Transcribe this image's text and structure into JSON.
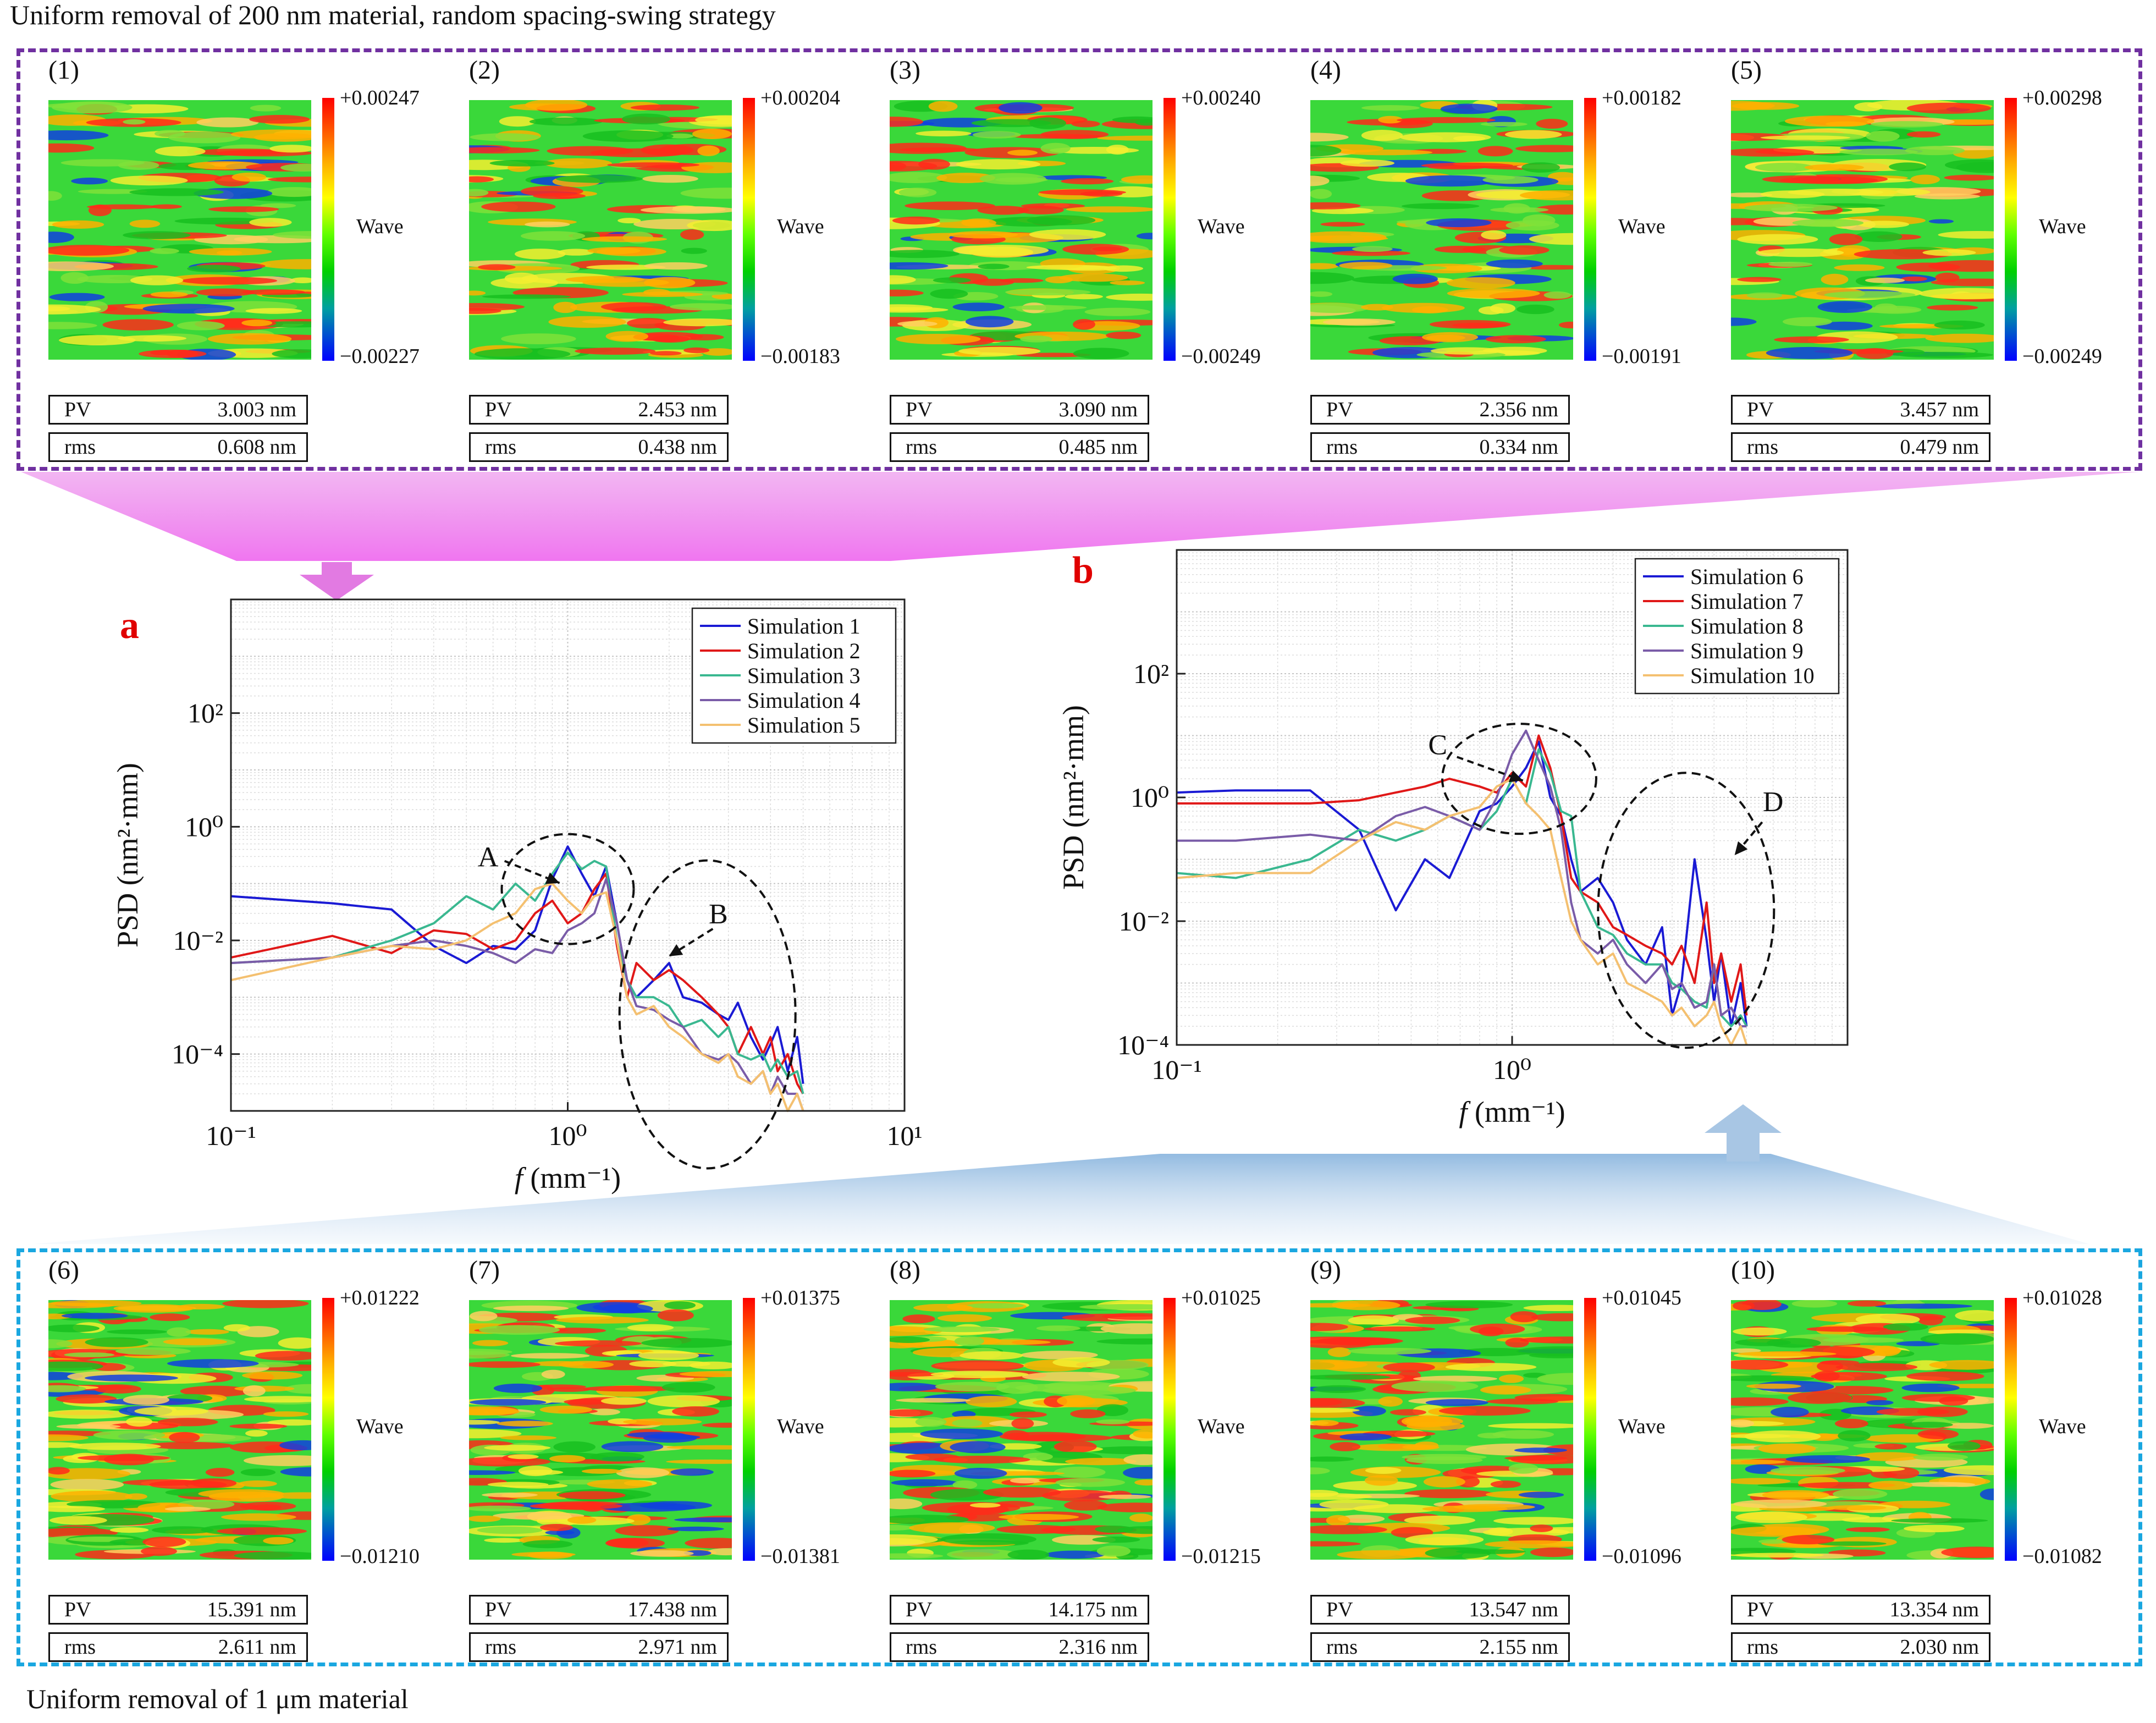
{
  "top_caption": "Uniform removal of 200 nm material, random spacing-swing strategy",
  "bottom_caption": "Uniform removal of 1 μm material",
  "colors": {
    "top_box": "#7030a0",
    "bottom_box": "#1aa7e0",
    "panel_letter": "#e00000",
    "top_arrow": "#e27ae2",
    "bottom_arrow": "#a8c6e4"
  },
  "maps_top": [
    {
      "label": "(1)",
      "cb_max": "+0.00247",
      "cb_min": "−0.00227",
      "cb_title": "Wave",
      "pv_label": "PV",
      "pv": "3.003 nm",
      "rms_label": "rms",
      "rms": "0.608 nm"
    },
    {
      "label": "(2)",
      "cb_max": "+0.00204",
      "cb_min": "−0.00183",
      "cb_title": "Wave",
      "pv_label": "PV",
      "pv": "2.453 nm",
      "rms_label": "rms",
      "rms": "0.438 nm"
    },
    {
      "label": "(3)",
      "cb_max": "+0.00240",
      "cb_min": "−0.00249",
      "cb_title": "Wave",
      "pv_label": "PV",
      "pv": "3.090 nm",
      "rms_label": "rms",
      "rms": "0.485 nm"
    },
    {
      "label": "(4)",
      "cb_max": "+0.00182",
      "cb_min": "−0.00191",
      "cb_title": "Wave",
      "pv_label": "PV",
      "pv": "2.356 nm",
      "rms_label": "rms",
      "rms": "0.334 nm"
    },
    {
      "label": "(5)",
      "cb_max": "+0.00298",
      "cb_min": "−0.00249",
      "cb_title": "Wave",
      "pv_label": "PV",
      "pv": "3.457 nm",
      "rms_label": "rms",
      "rms": "0.479 nm"
    }
  ],
  "maps_bottom": [
    {
      "label": "(6)",
      "cb_max": "+0.01222",
      "cb_min": "−0.01210",
      "cb_title": "Wave",
      "pv_label": "PV",
      "pv": "15.391 nm",
      "rms_label": "rms",
      "rms": "2.611 nm"
    },
    {
      "label": "(7)",
      "cb_max": "+0.01375",
      "cb_min": "−0.01381",
      "cb_title": "Wave",
      "pv_label": "PV",
      "pv": "17.438 nm",
      "rms_label": "rms",
      "rms": "2.971 nm"
    },
    {
      "label": "(8)",
      "cb_max": "+0.01025",
      "cb_min": "−0.01215",
      "cb_title": "Wave",
      "pv_label": "PV",
      "pv": "14.175 nm",
      "rms_label": "rms",
      "rms": "2.316 nm"
    },
    {
      "label": "(9)",
      "cb_max": "+0.01045",
      "cb_min": "−0.01096",
      "cb_title": "Wave",
      "pv_label": "PV",
      "pv": "13.547 nm",
      "rms_label": "rms",
      "rms": "2.155 nm"
    },
    {
      "label": "(10)",
      "cb_max": "+0.01028",
      "cb_min": "−0.01082",
      "cb_title": "Wave",
      "pv_label": "PV",
      "pv": "13.354 nm",
      "rms_label": "rms",
      "rms": "2.030 nm"
    }
  ],
  "chart_data": [
    {
      "panel": "a",
      "type": "line",
      "xscale": "log",
      "yscale": "log",
      "xlim": [
        0.1,
        10
      ],
      "ylim": [
        1e-05,
        10000
      ],
      "xticks": [
        0.1,
        1,
        10
      ],
      "xtick_labels": [
        "10⁻¹",
        "10⁰",
        "10¹"
      ],
      "yticks": [
        0.0001,
        0.01,
        1,
        100
      ],
      "ytick_labels": [
        "10⁻⁴",
        "10⁻²",
        "10⁰",
        "10²"
      ],
      "xlabel_italic": "f",
      "xlabel_rest": " (mm⁻¹)",
      "ylabel": "PSD (nm²·mm)",
      "legend": "top-right",
      "series": [
        {
          "name": "Simulation 1",
          "color": "#1a1ad4",
          "x": [
            0.1,
            0.2,
            0.3,
            0.4,
            0.5,
            0.6,
            0.7,
            0.8,
            0.9,
            1.0,
            1.1,
            1.2,
            1.3,
            1.4,
            1.5,
            1.6,
            1.8,
            2.0,
            2.2,
            2.5,
            2.8,
            3.0,
            3.2,
            3.5,
            3.8,
            4.0,
            4.2,
            4.5,
            4.8,
            5.0
          ],
          "y": [
            0.06,
            0.045,
            0.035,
            0.008,
            0.004,
            0.008,
            0.007,
            0.015,
            0.12,
            0.45,
            0.15,
            0.06,
            0.2,
            0.02,
            0.002,
            0.001,
            0.002,
            0.004,
            0.001,
            0.0008,
            0.0005,
            0.0004,
            0.0008,
            0.0002,
            8e-05,
            0.00015,
            0.0003,
            5e-05,
            0.0002,
            3e-05
          ]
        },
        {
          "name": "Simulation 2",
          "color": "#e01818",
          "x": [
            0.1,
            0.2,
            0.3,
            0.4,
            0.5,
            0.6,
            0.7,
            0.8,
            0.9,
            1.0,
            1.1,
            1.2,
            1.3,
            1.4,
            1.5,
            1.6,
            1.8,
            2.0,
            2.2,
            2.5,
            2.8,
            3.0,
            3.2,
            3.5,
            3.8,
            4.0,
            4.2,
            4.5,
            4.8,
            5.0
          ],
          "y": [
            0.005,
            0.012,
            0.006,
            0.015,
            0.013,
            0.007,
            0.01,
            0.03,
            0.05,
            0.02,
            0.03,
            0.08,
            0.15,
            0.008,
            0.001,
            0.004,
            0.002,
            0.003,
            0.002,
            0.001,
            0.0005,
            0.0003,
            0.0001,
            0.0003,
            0.0001,
            0.0002,
            5e-05,
            0.0001,
            3e-05,
            2e-05
          ]
        },
        {
          "name": "Simulation 3",
          "color": "#3ab890",
          "x": [
            0.1,
            0.2,
            0.3,
            0.4,
            0.5,
            0.6,
            0.7,
            0.8,
            0.9,
            1.0,
            1.1,
            1.2,
            1.3,
            1.4,
            1.5,
            1.6,
            1.8,
            2.0,
            2.2,
            2.5,
            2.8,
            3.0,
            3.2,
            3.5,
            3.8,
            4.0,
            4.2,
            4.5,
            4.8,
            5.0
          ],
          "y": [
            0.004,
            0.005,
            0.01,
            0.02,
            0.06,
            0.035,
            0.1,
            0.05,
            0.15,
            0.35,
            0.18,
            0.25,
            0.2,
            0.01,
            0.002,
            0.001,
            0.001,
            0.0007,
            0.0003,
            0.0004,
            0.0002,
            0.0003,
            0.0001,
            8e-05,
            0.0001,
            5e-05,
            8e-05,
            4e-05,
            5e-05,
            2e-05
          ]
        },
        {
          "name": "Simulation 4",
          "color": "#7a5ca8",
          "x": [
            0.1,
            0.2,
            0.3,
            0.4,
            0.5,
            0.6,
            0.7,
            0.8,
            0.9,
            1.0,
            1.1,
            1.2,
            1.3,
            1.4,
            1.5,
            1.6,
            1.8,
            2.0,
            2.2,
            2.5,
            2.8,
            3.0,
            3.2,
            3.5,
            3.8,
            4.0,
            4.2,
            4.5,
            4.8,
            5.0
          ],
          "y": [
            0.004,
            0.005,
            0.008,
            0.01,
            0.008,
            0.006,
            0.004,
            0.007,
            0.006,
            0.015,
            0.02,
            0.03,
            0.12,
            0.02,
            0.002,
            0.0007,
            0.0006,
            0.0004,
            0.0003,
            0.0001,
            8e-05,
            0.0001,
            7e-05,
            3e-05,
            5e-05,
            2e-05,
            4e-05,
            2e-05,
            2e-05,
            1e-05
          ]
        },
        {
          "name": "Simulation 5",
          "color": "#f4c070",
          "x": [
            0.1,
            0.2,
            0.3,
            0.4,
            0.5,
            0.6,
            0.7,
            0.8,
            0.9,
            1.0,
            1.1,
            1.2,
            1.3,
            1.4,
            1.5,
            1.6,
            1.8,
            2.0,
            2.2,
            2.5,
            2.8,
            3.0,
            3.2,
            3.5,
            3.8,
            4.0,
            4.2,
            4.5,
            4.8,
            5.0
          ],
          "y": [
            0.002,
            0.005,
            0.008,
            0.007,
            0.01,
            0.02,
            0.03,
            0.08,
            0.1,
            0.05,
            0.03,
            0.06,
            0.07,
            0.01,
            0.001,
            0.0005,
            0.0007,
            0.0003,
            0.0002,
            0.0001,
            7e-05,
            0.0001,
            4e-05,
            3e-05,
            5e-05,
            2e-05,
            3e-05,
            1e-05,
            2e-05,
            1e-05
          ]
        }
      ],
      "annotations": [
        {
          "text": "A",
          "x": 0.58,
          "y": 0.2
        },
        {
          "text": "B",
          "x": 2.8,
          "y": 0.02
        }
      ]
    },
    {
      "panel": "b",
      "type": "line",
      "xscale": "log",
      "yscale": "log",
      "xlim": [
        0.1,
        10
      ],
      "ylim": [
        0.0001,
        10000
      ],
      "xticks": [
        0.1,
        1
      ],
      "xtick_labels": [
        "10⁻¹",
        "10⁰"
      ],
      "yticks": [
        0.0001,
        0.01,
        1,
        100
      ],
      "ytick_labels": [
        "10⁻⁴",
        "10⁻²",
        "10⁰",
        "10²"
      ],
      "xlabel_italic": "f",
      "xlabel_rest": " (mm⁻¹)",
      "ylabel": "PSD (nm²·mm)",
      "legend": "top-right",
      "series": [
        {
          "name": "Simulation 6",
          "color": "#1a1ad4",
          "x": [
            0.1,
            0.15,
            0.25,
            0.35,
            0.45,
            0.55,
            0.65,
            0.8,
            0.9,
            1.0,
            1.1,
            1.2,
            1.3,
            1.4,
            1.5,
            1.6,
            1.8,
            2.0,
            2.2,
            2.5,
            2.8,
            3.0,
            3.2,
            3.5,
            3.8,
            4.0,
            4.2,
            4.5,
            4.8,
            5.0
          ],
          "y": [
            1.2,
            1.3,
            1.3,
            0.3,
            0.015,
            0.1,
            0.05,
            0.6,
            0.8,
            1.5,
            3.0,
            8.0,
            1.0,
            0.5,
            0.1,
            0.03,
            0.05,
            0.02,
            0.005,
            0.002,
            0.008,
            0.0003,
            0.001,
            0.1,
            0.005,
            0.0005,
            0.003,
            0.0002,
            0.001,
            0.0002
          ]
        },
        {
          "name": "Simulation 7",
          "color": "#e01818",
          "x": [
            0.1,
            0.15,
            0.25,
            0.35,
            0.45,
            0.55,
            0.65,
            0.8,
            0.9,
            1.0,
            1.1,
            1.2,
            1.3,
            1.4,
            1.5,
            1.6,
            1.8,
            2.0,
            2.2,
            2.5,
            2.8,
            3.0,
            3.2,
            3.5,
            3.8,
            4.0,
            4.2,
            4.5,
            4.8,
            5.0
          ],
          "y": [
            0.8,
            0.8,
            0.8,
            0.9,
            1.2,
            1.5,
            2.0,
            1.5,
            1.2,
            2.5,
            1.5,
            10.0,
            3.0,
            0.5,
            0.05,
            0.03,
            0.02,
            0.008,
            0.006,
            0.004,
            0.003,
            0.002,
            0.004,
            0.001,
            0.02,
            0.001,
            0.003,
            0.0005,
            0.002,
            0.0003
          ]
        },
        {
          "name": "Simulation 8",
          "color": "#3ab890",
          "x": [
            0.1,
            0.15,
            0.25,
            0.35,
            0.45,
            0.55,
            0.65,
            0.8,
            0.9,
            1.0,
            1.1,
            1.2,
            1.3,
            1.4,
            1.5,
            1.6,
            1.8,
            2.0,
            2.2,
            2.5,
            2.8,
            3.0,
            3.2,
            3.5,
            3.8,
            4.0,
            4.2,
            4.5,
            4.8,
            5.0
          ],
          "y": [
            0.06,
            0.05,
            0.1,
            0.3,
            0.2,
            0.3,
            0.5,
            0.3,
            0.6,
            2.0,
            0.8,
            6.0,
            2.5,
            0.6,
            0.5,
            0.03,
            0.008,
            0.006,
            0.003,
            0.002,
            0.002,
            0.001,
            0.0008,
            0.0005,
            0.0004,
            0.002,
            0.0003,
            0.0002,
            0.0003,
            0.0002
          ]
        },
        {
          "name": "Simulation 9",
          "color": "#7a5ca8",
          "x": [
            0.1,
            0.15,
            0.25,
            0.35,
            0.45,
            0.55,
            0.65,
            0.8,
            0.9,
            1.0,
            1.1,
            1.2,
            1.3,
            1.4,
            1.5,
            1.6,
            1.8,
            2.0,
            2.2,
            2.5,
            2.8,
            3.0,
            3.2,
            3.5,
            3.8,
            4.0,
            4.2,
            4.5,
            4.8,
            5.0
          ],
          "y": [
            0.2,
            0.2,
            0.25,
            0.2,
            0.5,
            0.7,
            0.5,
            0.3,
            1.0,
            5.0,
            12.0,
            4.0,
            1.5,
            0.3,
            0.02,
            0.005,
            0.003,
            0.005,
            0.002,
            0.001,
            0.002,
            0.0008,
            0.001,
            0.0004,
            0.0005,
            0.002,
            0.0003,
            0.0004,
            0.0002,
            0.0002
          ]
        },
        {
          "name": "Simulation 10",
          "color": "#f4c070",
          "x": [
            0.1,
            0.15,
            0.25,
            0.35,
            0.45,
            0.55,
            0.65,
            0.8,
            0.9,
            1.0,
            1.1,
            1.2,
            1.3,
            1.4,
            1.5,
            1.6,
            1.8,
            2.0,
            2.2,
            2.5,
            2.8,
            3.0,
            3.2,
            3.5,
            3.8,
            4.0,
            4.2,
            4.5,
            4.8,
            5.0
          ],
          "y": [
            0.05,
            0.06,
            0.06,
            0.2,
            0.4,
            0.3,
            0.5,
            0.7,
            1.5,
            2.0,
            0.8,
            0.5,
            0.3,
            0.05,
            0.01,
            0.005,
            0.002,
            0.003,
            0.001,
            0.0007,
            0.0005,
            0.0003,
            0.0004,
            0.0002,
            0.0003,
            0.0005,
            0.0002,
            0.0001,
            0.0002,
            0.0001
          ]
        }
      ],
      "annotations": [
        {
          "text": "C",
          "x": 0.6,
          "y": 5
        },
        {
          "text": "D",
          "x": 6.0,
          "y": 0.6
        }
      ]
    }
  ],
  "panel_letters": {
    "a": "a",
    "b": "b"
  }
}
